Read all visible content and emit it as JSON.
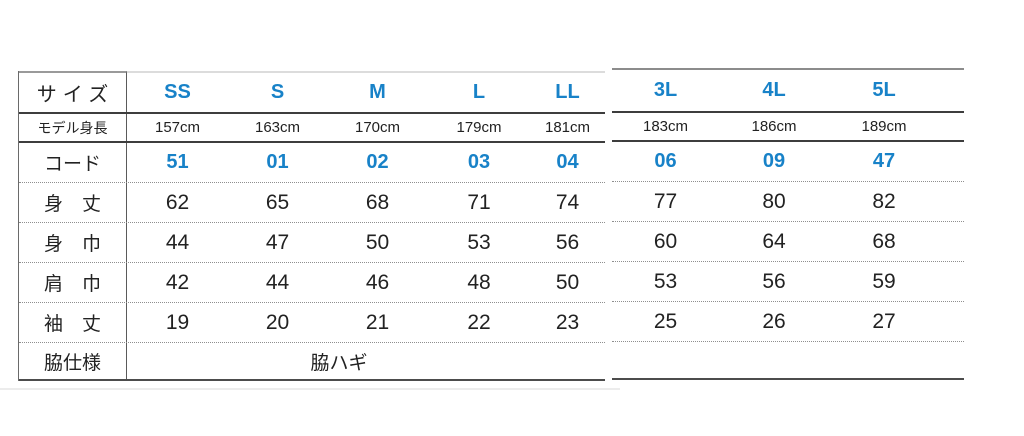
{
  "chart_data": {
    "type": "table",
    "corner_label": "サイズ",
    "size_columns": [
      "SS",
      "S",
      "M",
      "L",
      "LL",
      "3L",
      "4L",
      "5L"
    ],
    "rows": [
      {
        "label": "モデル身長",
        "values": [
          "157cm",
          "163cm",
          "170cm",
          "179cm",
          "181cm",
          "183cm",
          "186cm",
          "189cm"
        ]
      },
      {
        "label": "コード",
        "values": [
          "51",
          "01",
          "02",
          "03",
          "04",
          "06",
          "09",
          "47"
        ]
      },
      {
        "label": "身　丈",
        "values": [
          "62",
          "65",
          "68",
          "71",
          "74",
          "77",
          "80",
          "82"
        ]
      },
      {
        "label": "身　巾",
        "values": [
          "44",
          "47",
          "50",
          "53",
          "56",
          "60",
          "64",
          "68"
        ]
      },
      {
        "label": "肩　巾",
        "values": [
          "42",
          "44",
          "46",
          "48",
          "50",
          "53",
          "56",
          "59"
        ]
      },
      {
        "label": "袖　丈",
        "values": [
          "19",
          "20",
          "21",
          "22",
          "23",
          "25",
          "26",
          "27"
        ]
      },
      {
        "label": "脇仕様",
        "values": [],
        "span_value": "脇ハギ"
      }
    ],
    "layout": {
      "split_after": "LL",
      "accent_color": "#1882c8",
      "grid": "dotted row separators, solid header separators, no right border",
      "legend_position": "none"
    }
  }
}
